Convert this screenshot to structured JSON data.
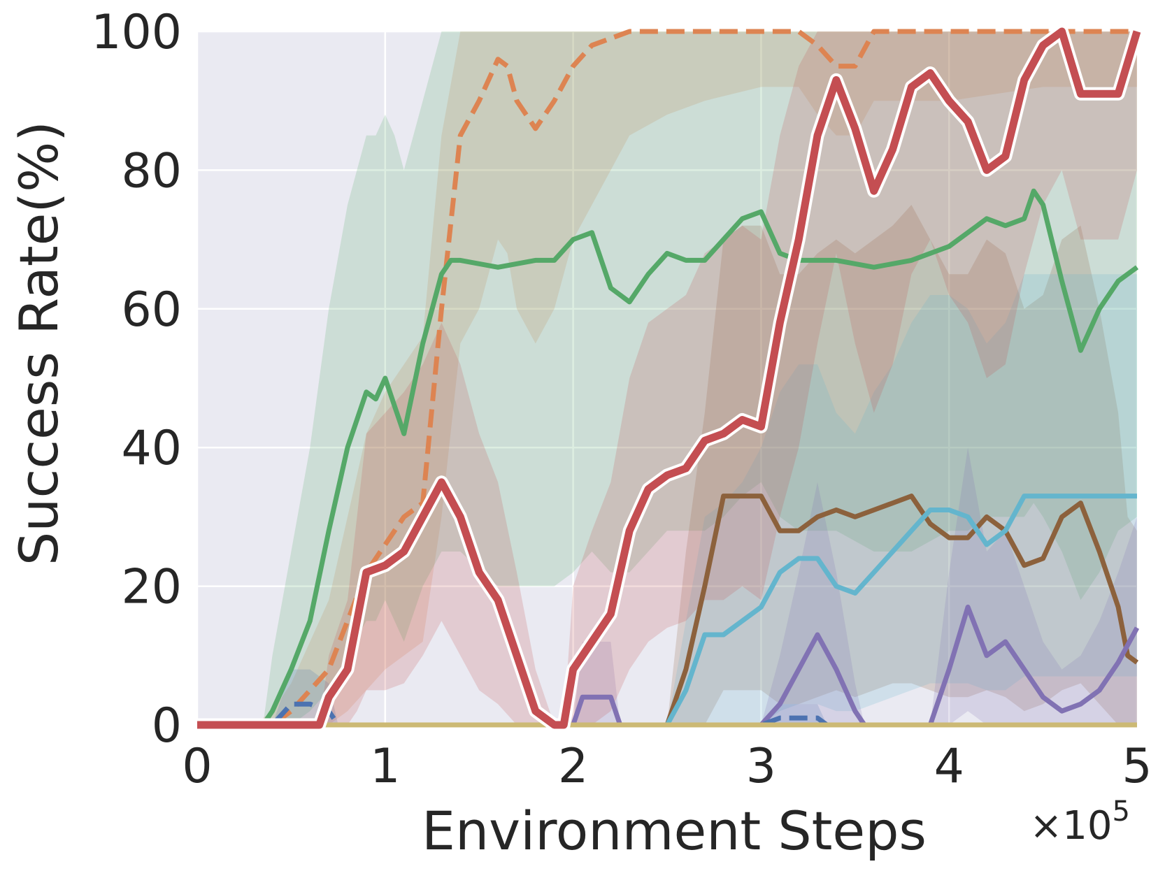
{
  "chart_data": {
    "type": "line",
    "title": "",
    "xlabel": "Environment Steps",
    "ylabel": "Success Rate(%)",
    "x_multiplier_label": "×10",
    "x_multiplier_exponent": "5",
    "xlim": [
      0,
      5
    ],
    "ylim": [
      0,
      100
    ],
    "x_ticks": [
      "0",
      "1",
      "2",
      "3",
      "4",
      "5"
    ],
    "y_ticks": [
      "0",
      "20",
      "40",
      "60",
      "80",
      "100"
    ],
    "grid": true,
    "legend": "none",
    "background_color": "#EAEAF2",
    "grid_color": "#FFFFFF",
    "series": [
      {
        "color": "#DD8452",
        "style": "dashed",
        "x": [
          0,
          0.3,
          0.4,
          0.5,
          0.6,
          0.7,
          0.8,
          0.9,
          1.0,
          1.1,
          1.2,
          1.3,
          1.4,
          1.5,
          1.6,
          1.65,
          1.7,
          1.8,
          1.9,
          2.0,
          2.1,
          2.2,
          2.3,
          2.5,
          2.7,
          3.0,
          3.2,
          3.3,
          3.4,
          3.5,
          3.6,
          3.8,
          4.0,
          4.5,
          5.0
        ],
        "y": [
          0,
          0,
          0,
          2,
          5,
          8,
          15,
          22,
          26,
          30,
          32,
          60,
          85,
          90,
          96,
          95,
          90,
          86,
          90,
          95,
          98,
          99,
          100,
          100,
          100,
          100,
          100,
          98,
          95,
          95,
          100,
          100,
          100,
          100,
          100
        ],
        "band_low": [
          0,
          0,
          0,
          0,
          0,
          0,
          2,
          5,
          8,
          10,
          12,
          30,
          55,
          60,
          70,
          68,
          60,
          55,
          60,
          70,
          75,
          80,
          85,
          88,
          90,
          92,
          92,
          88,
          85,
          85,
          90,
          90,
          90,
          92,
          92
        ],
        "band_high": [
          0,
          0,
          2,
          6,
          12,
          18,
          30,
          42,
          48,
          52,
          56,
          85,
          100,
          100,
          100,
          100,
          100,
          100,
          100,
          100,
          100,
          100,
          100,
          100,
          100,
          100,
          100,
          100,
          100,
          100,
          100,
          100,
          100,
          100,
          100
        ]
      },
      {
        "color": "#55A868",
        "style": "solid",
        "x": [
          0,
          0.35,
          0.4,
          0.5,
          0.6,
          0.7,
          0.8,
          0.9,
          0.95,
          1.0,
          1.05,
          1.1,
          1.2,
          1.3,
          1.35,
          1.4,
          1.6,
          1.8,
          1.9,
          2.0,
          2.1,
          2.2,
          2.3,
          2.4,
          2.5,
          2.6,
          2.7,
          2.8,
          2.9,
          3.0,
          3.1,
          3.2,
          3.4,
          3.6,
          3.8,
          4.0,
          4.1,
          4.2,
          4.3,
          4.4,
          4.45,
          4.5,
          4.6,
          4.7,
          4.8,
          4.9,
          5.0
        ],
        "y": [
          0,
          0,
          2,
          8,
          15,
          28,
          40,
          48,
          47,
          50,
          46,
          42,
          55,
          65,
          67,
          67,
          66,
          67,
          67,
          70,
          71,
          63,
          61,
          65,
          68,
          67,
          67,
          70,
          73,
          74,
          68,
          67,
          67,
          66,
          67,
          69,
          71,
          73,
          72,
          73,
          77,
          75,
          64,
          54,
          60,
          64,
          66
        ],
        "band_low": [
          0,
          0,
          0,
          0,
          2,
          5,
          10,
          15,
          15,
          18,
          15,
          12,
          20,
          25,
          25,
          25,
          20,
          20,
          20,
          22,
          25,
          22,
          22,
          25,
          28,
          28,
          28,
          30,
          33,
          35,
          30,
          28,
          28,
          25,
          25,
          28,
          28,
          30,
          30,
          30,
          32,
          30,
          25,
          18,
          22,
          28,
          30
        ],
        "band_high": [
          0,
          0,
          10,
          25,
          40,
          60,
          75,
          85,
          85,
          88,
          85,
          80,
          90,
          100,
          100,
          100,
          100,
          100,
          100,
          100,
          100,
          100,
          100,
          100,
          100,
          100,
          100,
          100,
          100,
          100,
          100,
          100,
          100,
          100,
          100,
          100,
          100,
          100,
          100,
          100,
          100,
          100,
          100,
          100,
          100,
          100,
          100
        ]
      },
      {
        "color": "#8C613C",
        "style": "solid",
        "x": [
          0,
          2.5,
          2.6,
          2.7,
          2.8,
          2.9,
          3.0,
          3.1,
          3.2,
          3.3,
          3.4,
          3.5,
          3.6,
          3.7,
          3.8,
          3.9,
          4.0,
          4.1,
          4.2,
          4.3,
          4.4,
          4.5,
          4.6,
          4.7,
          4.8,
          4.9,
          4.95,
          5.0
        ],
        "y": [
          0,
          0,
          8,
          20,
          33,
          33,
          33,
          28,
          28,
          30,
          31,
          30,
          31,
          32,
          33,
          29,
          27,
          27,
          30,
          28,
          23,
          24,
          30,
          32,
          25,
          17,
          10,
          9
        ],
        "band_low": [
          0,
          0,
          0,
          0,
          5,
          5,
          5,
          3,
          3,
          4,
          5,
          4,
          5,
          6,
          6,
          5,
          4,
          4,
          5,
          4,
          2,
          3,
          5,
          6,
          3,
          0,
          0,
          0
        ],
        "band_high": [
          0,
          0,
          25,
          45,
          70,
          72,
          72,
          65,
          65,
          68,
          70,
          68,
          70,
          72,
          75,
          70,
          65,
          65,
          70,
          68,
          60,
          62,
          70,
          72,
          60,
          45,
          30,
          28
        ]
      },
      {
        "color": "#64B5CD",
        "style": "solid",
        "x": [
          0,
          2.5,
          2.6,
          2.7,
          2.8,
          2.9,
          3.0,
          3.1,
          3.2,
          3.3,
          3.4,
          3.5,
          3.6,
          3.7,
          3.8,
          3.9,
          4.0,
          4.1,
          4.2,
          4.3,
          4.4,
          4.5,
          5.0
        ],
        "y": [
          0,
          0,
          5,
          13,
          13,
          15,
          17,
          22,
          24,
          24,
          20,
          19,
          22,
          25,
          28,
          31,
          31,
          30,
          26,
          28,
          33,
          33,
          33
        ],
        "band_low": [
          0,
          0,
          0,
          0,
          0,
          0,
          0,
          2,
          3,
          3,
          2,
          2,
          3,
          4,
          5,
          6,
          6,
          6,
          5,
          5,
          7,
          7,
          7
        ],
        "band_high": [
          0,
          0,
          15,
          30,
          32,
          35,
          40,
          48,
          52,
          52,
          45,
          42,
          48,
          52,
          58,
          62,
          62,
          60,
          55,
          58,
          65,
          65,
          65
        ]
      },
      {
        "color": "#8172B3",
        "style": "solid",
        "x": [
          0,
          2.0,
          2.05,
          2.15,
          2.2,
          2.25,
          3.0,
          3.1,
          3.2,
          3.3,
          3.4,
          3.5,
          3.55,
          3.9,
          4.0,
          4.1,
          4.2,
          4.3,
          4.4,
          4.5,
          4.6,
          4.7,
          4.8,
          4.9,
          5.0
        ],
        "y": [
          0,
          0,
          4,
          4,
          4,
          0,
          0,
          3,
          8,
          13,
          8,
          2,
          0,
          0,
          8,
          17,
          10,
          12,
          8,
          4,
          2,
          3,
          5,
          9,
          14
        ],
        "band_low": [
          0,
          0,
          0,
          0,
          0,
          0,
          0,
          0,
          0,
          0,
          0,
          0,
          0,
          0,
          0,
          2,
          0,
          0,
          0,
          0,
          0,
          0,
          0,
          0,
          0
        ],
        "band_high": [
          0,
          0,
          12,
          12,
          12,
          0,
          0,
          10,
          22,
          35,
          22,
          6,
          0,
          0,
          22,
          40,
          25,
          28,
          20,
          12,
          8,
          10,
          15,
          22,
          30
        ]
      },
      {
        "color": "#4C72B0",
        "style": "dashed",
        "x": [
          0,
          0.4,
          0.5,
          0.6,
          0.7,
          0.75,
          1.0,
          3.0,
          3.1,
          3.3,
          3.35,
          5.0
        ],
        "y": [
          0,
          0,
          3,
          3,
          2,
          0,
          0,
          0,
          1,
          1,
          0,
          0
        ],
        "band_low": [
          0,
          0,
          0,
          0,
          0,
          0,
          0,
          0,
          0,
          0,
          0,
          0
        ],
        "band_high": [
          0,
          0,
          8,
          8,
          6,
          0,
          0,
          0,
          3,
          3,
          0,
          0
        ]
      },
      {
        "color": "#CCB974",
        "style": "solid",
        "x": [
          0,
          5.0
        ],
        "y": [
          0,
          0
        ],
        "band_low": [
          0,
          0
        ],
        "band_high": [
          0,
          0
        ]
      },
      {
        "color": "#C44E52",
        "style": "solid",
        "emphasis": true,
        "x": [
          0,
          0.65,
          0.7,
          0.8,
          0.85,
          0.9,
          1.0,
          1.1,
          1.2,
          1.3,
          1.4,
          1.5,
          1.6,
          1.7,
          1.8,
          1.9,
          1.95,
          2.0,
          2.1,
          2.2,
          2.3,
          2.4,
          2.5,
          2.6,
          2.7,
          2.8,
          2.9,
          3.0,
          3.1,
          3.2,
          3.3,
          3.4,
          3.5,
          3.6,
          3.7,
          3.8,
          3.9,
          4.0,
          4.1,
          4.2,
          4.3,
          4.4,
          4.5,
          4.6,
          4.7,
          4.8,
          4.9,
          5.0
        ],
        "y": [
          0,
          0,
          4,
          8,
          15,
          22,
          23,
          25,
          30,
          35,
          30,
          22,
          18,
          10,
          2,
          0,
          0,
          8,
          12,
          16,
          28,
          34,
          36,
          37,
          41,
          42,
          44,
          43,
          58,
          70,
          85,
          93,
          86,
          77,
          83,
          92,
          94,
          90,
          87,
          80,
          82,
          93,
          98,
          100,
          91,
          91,
          91,
          100
        ],
        "band_low": [
          0,
          0,
          0,
          0,
          2,
          5,
          5,
          6,
          10,
          15,
          10,
          5,
          3,
          0,
          0,
          0,
          0,
          0,
          0,
          2,
          8,
          12,
          14,
          15,
          18,
          18,
          20,
          18,
          30,
          40,
          55,
          68,
          55,
          45,
          52,
          65,
          70,
          62,
          58,
          50,
          52,
          65,
          75,
          80,
          70,
          70,
          70,
          80
        ],
        "band_high": [
          0,
          0,
          10,
          18,
          30,
          42,
          45,
          48,
          52,
          58,
          52,
          42,
          35,
          22,
          8,
          0,
          0,
          20,
          28,
          35,
          50,
          58,
          60,
          62,
          68,
          70,
          72,
          70,
          85,
          95,
          100,
          100,
          100,
          100,
          100,
          100,
          100,
          100,
          100,
          100,
          100,
          100,
          100,
          100,
          100,
          100,
          100,
          100
        ]
      }
    ]
  }
}
